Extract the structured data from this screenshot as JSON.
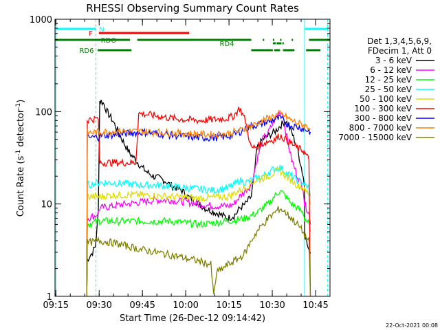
{
  "chart_data": {
    "type": "line",
    "title": "RHESSI Observing Summary Count Rates",
    "xlabel": "Start Time (26-Dec-12 09:14:42)",
    "ylabel_main": "Count Rate (s",
    "ylabel_sup1": "-1",
    "ylabel_mid": " detector",
    "ylabel_sup2": "-1",
    "ylabel_end": ")",
    "y_scale": "log",
    "ylim": [
      1,
      1000
    ],
    "xlim_minutes": [
      0,
      95.3
    ],
    "x_ticks": [
      {
        "label": "09:15",
        "minutes": 0.3
      },
      {
        "label": "09:30",
        "minutes": 15.3
      },
      {
        "label": "09:45",
        "minutes": 30.3
      },
      {
        "label": "10:00",
        "minutes": 45.3
      },
      {
        "label": "10:15",
        "minutes": 60.3
      },
      {
        "label": "10:30",
        "minutes": 75.3
      },
      {
        "label": "10:45",
        "minutes": 90.3
      }
    ],
    "y_ticks": [
      {
        "label": "1",
        "value": 1
      },
      {
        "label": "10",
        "value": 10
      },
      {
        "label": "100",
        "value": 100
      },
      {
        "label": "1000",
        "value": 1000
      }
    ],
    "legend_header": [
      "Det 1,3,4,5,6,9,",
      "FDecim 1, Att 0"
    ],
    "legend_position": "right",
    "series": [
      {
        "name": "3 - 6 keV",
        "color": "#000000",
        "x": [
          11,
          11.2,
          13,
          14,
          15,
          15.5,
          16,
          17,
          18,
          20,
          22,
          24,
          26,
          28,
          30,
          32,
          34,
          36,
          38,
          40,
          42,
          44,
          46,
          48,
          50,
          52,
          54,
          56,
          58,
          60,
          62,
          63,
          64,
          66,
          68,
          69,
          70,
          72,
          74,
          76,
          78,
          80,
          82,
          84,
          86,
          86.5,
          86.5,
          88,
          88.5
        ],
        "y": [
          1,
          2.5,
          3,
          3.5,
          8,
          130,
          130,
          120,
          100,
          80,
          60,
          45,
          35,
          30,
          25,
          22,
          20,
          19,
          18,
          16,
          15,
          14,
          12,
          11,
          10,
          9,
          8.5,
          8,
          7.5,
          7,
          7.5,
          8,
          9,
          10,
          12,
          20,
          40,
          50,
          55,
          60,
          70,
          80,
          60,
          40,
          20,
          15,
          5,
          3,
          3
        ]
      },
      {
        "name": "6 - 12 keV",
        "color": "#ff00ff",
        "x": [
          11,
          11.2,
          14,
          15,
          15.5,
          20,
          25,
          30,
          35,
          40,
          45,
          50,
          55,
          60,
          62,
          64,
          66,
          68,
          70,
          72,
          74,
          76,
          78,
          79,
          80,
          82,
          84,
          86,
          86.5,
          88,
          88.5
        ],
        "y": [
          1,
          7,
          7.5,
          8,
          9,
          9.5,
          10,
          10.5,
          11,
          11,
          10.5,
          10,
          9.5,
          9.5,
          10,
          12,
          14,
          16,
          30,
          50,
          60,
          80,
          100,
          95,
          60,
          30,
          20,
          15,
          10,
          8,
          6
        ]
      },
      {
        "name": "12 - 25 keV",
        "color": "#00ff00",
        "x": [
          11,
          11.2,
          15,
          15.5,
          20,
          30,
          40,
          50,
          60,
          66,
          70,
          72,
          74,
          76,
          78,
          80,
          82,
          84,
          86,
          86.5,
          88,
          88.5
        ],
        "y": [
          1,
          6,
          6.5,
          6.5,
          6.5,
          6.5,
          6.5,
          6,
          6.5,
          7,
          8,
          9,
          10,
          12,
          14,
          12,
          10,
          9,
          8,
          7,
          6,
          5
        ]
      },
      {
        "name": "25 - 50 keV",
        "color": "#00ffff",
        "x": [
          11,
          11.2,
          15,
          15.5,
          20,
          25,
          30,
          35,
          40,
          45,
          50,
          55,
          60,
          62,
          64,
          66,
          68,
          70,
          72,
          74,
          76,
          78,
          80,
          82,
          84,
          86,
          86.5,
          88,
          88.5
        ],
        "y": [
          1,
          16,
          17,
          17,
          17,
          16.5,
          16,
          16,
          15.5,
          15,
          14.5,
          14,
          15,
          16,
          18,
          17,
          18,
          19,
          20,
          22,
          24,
          25,
          22,
          20,
          18,
          17,
          16,
          15,
          12
        ]
      },
      {
        "name": "50 - 100 keV",
        "color": "#dddd00",
        "x": [
          11,
          11.2,
          15,
          15.5,
          20,
          30,
          40,
          50,
          60,
          62,
          64,
          66,
          68,
          70,
          72,
          74,
          76,
          78,
          80,
          82,
          84,
          86,
          86.5,
          88,
          88.5
        ],
        "y": [
          1,
          12,
          12,
          12,
          12.5,
          12.5,
          12,
          11.5,
          12,
          13,
          14,
          15,
          17,
          18,
          19,
          20,
          22,
          23,
          20,
          18,
          16,
          15,
          14,
          13,
          10
        ]
      },
      {
        "name": "100 - 300 keV",
        "color": "#ff0000",
        "x": [
          11,
          11.2,
          14,
          15,
          15.5,
          20,
          25,
          28,
          29,
          30,
          35,
          40,
          45,
          50,
          55,
          60,
          62,
          64,
          66,
          68,
          70,
          72,
          74,
          76,
          78,
          80,
          82,
          84,
          86,
          86.5,
          88,
          88.5
        ],
        "y": [
          1,
          82,
          83,
          84,
          28,
          28,
          28,
          28,
          95,
          95,
          90,
          85,
          82,
          80,
          82,
          85,
          90,
          110,
          80,
          40,
          42,
          45,
          48,
          50,
          55,
          50,
          45,
          40,
          38,
          36,
          30,
          1
        ]
      },
      {
        "name": "300 - 800 keV",
        "color": "#0000ff",
        "x": [
          11,
          11.2,
          15,
          15.5,
          20,
          25,
          30,
          35,
          40,
          45,
          50,
          55,
          60,
          62,
          64,
          66,
          68,
          70,
          72,
          74,
          76,
          78,
          80,
          82,
          84,
          86,
          86.5,
          88,
          88.5
        ],
        "y": [
          1,
          52,
          53,
          55,
          56,
          58,
          60,
          58,
          56,
          54,
          52,
          52,
          54,
          56,
          60,
          65,
          70,
          72,
          75,
          78,
          82,
          85,
          75,
          70,
          68,
          66,
          64,
          62,
          60
        ]
      },
      {
        "name": "800 - 7000 keV",
        "color": "#ff8000",
        "x": [
          11,
          11.2,
          15,
          15.5,
          20,
          25,
          30,
          35,
          40,
          45,
          50,
          55,
          60,
          62,
          64,
          66,
          68,
          70,
          72,
          74,
          76,
          78,
          80,
          82,
          84,
          86,
          86.5,
          88,
          88.5
        ],
        "y": [
          1,
          59,
          60,
          60,
          61,
          61,
          61,
          60,
          59,
          58,
          57,
          56,
          58,
          60,
          62,
          66,
          70,
          74,
          80,
          85,
          90,
          95,
          88,
          80,
          75,
          72,
          70,
          68,
          65
        ]
      },
      {
        "name": "7000 - 15000 keV",
        "color": "#808000",
        "x": [
          11,
          11.2,
          14,
          15,
          15.5,
          20,
          25,
          30,
          35,
          40,
          45,
          50,
          52,
          54,
          55,
          56,
          58,
          60,
          62,
          64,
          66,
          68,
          70,
          72,
          74,
          76,
          78,
          80,
          82,
          84,
          86,
          86.5,
          88,
          88.5
        ],
        "y": [
          1,
          3.8,
          3.9,
          4,
          4,
          3.8,
          3.5,
          3.2,
          3,
          2.8,
          2.6,
          2.4,
          2.3,
          2.2,
          1,
          1.8,
          2,
          2.2,
          2.4,
          2.6,
          3,
          4,
          5,
          6,
          7,
          8,
          9,
          8,
          7,
          6,
          5,
          4.5,
          4,
          1
        ]
      }
    ],
    "vlines": [
      {
        "minutes": 0.3,
        "style": "solid",
        "color": "#00ffff"
      },
      {
        "minutes": 14.2,
        "style": "dashed",
        "color": "#00ffff"
      },
      {
        "minutes": 86.5,
        "style": "solid",
        "color": "#00ffff"
      },
      {
        "minutes": 94.5,
        "style": "dashed",
        "color": "#00ffff"
      }
    ],
    "status_bars": [
      {
        "label": "N",
        "color": "#00ffff",
        "level": 1,
        "segments": [
          [
            0.3,
            14.2
          ],
          [
            86.5,
            94.5
          ]
        ]
      },
      {
        "label": "F",
        "color": "#ff0000",
        "level": 2,
        "segments": [
          [
            15.2,
            46.5
          ]
        ]
      },
      {
        "label": "RDO",
        "color": "#008000",
        "level": 3,
        "segments": [
          [
            0,
            26.0
          ],
          [
            28.5,
            68.0
          ],
          [
            72.0,
            72.5
          ],
          [
            75.5,
            76.0
          ],
          [
            78.0,
            78.5
          ],
          [
            82.0,
            82.5
          ],
          [
            88.0,
            95.3
          ]
        ]
      },
      {
        "label": "RD4",
        "color": "#008000",
        "level": 4,
        "segments": [
          [
            75.5,
            76.5
          ],
          [
            76.8,
            78.5
          ],
          [
            78.8,
            79.3
          ]
        ]
      },
      {
        "label": "RD6",
        "color": "#008000",
        "level": 5,
        "segments": [
          [
            14.8,
            26.5
          ],
          [
            68.0,
            75.5
          ],
          [
            76.0,
            78.0
          ],
          [
            79.0,
            83.0
          ],
          [
            87.0,
            92.0
          ]
        ]
      }
    ],
    "footer_date": "22-Oct-2021 00:08"
  }
}
